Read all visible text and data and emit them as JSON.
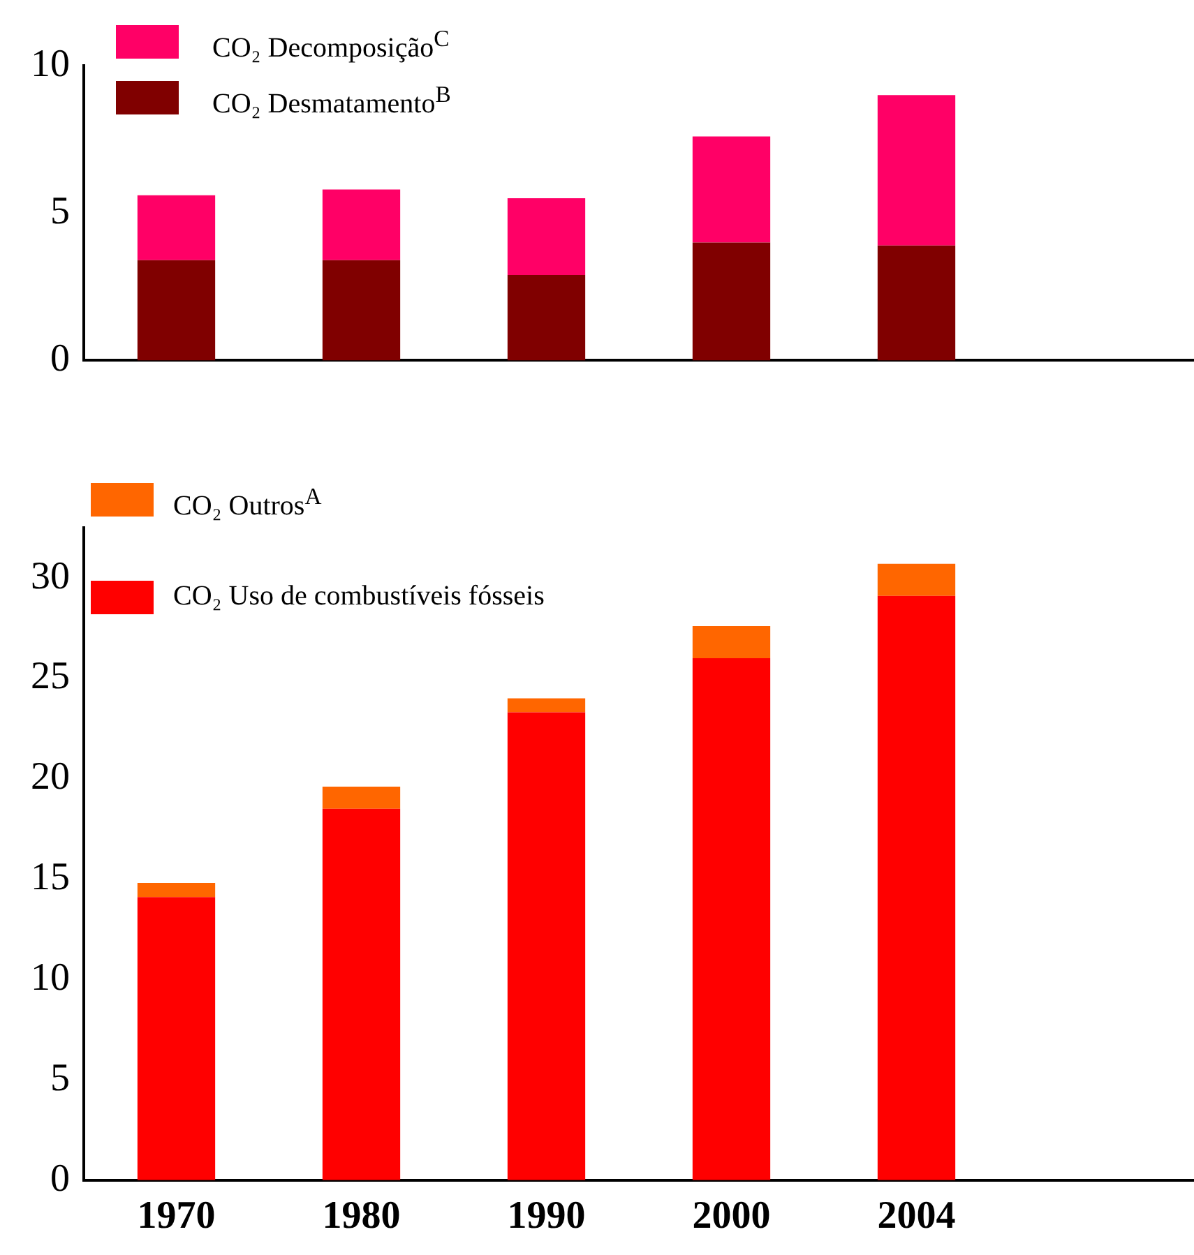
{
  "chart_data": [
    {
      "type": "bar",
      "stacked": true,
      "categories": [
        "1970",
        "1980",
        "1990",
        "2000",
        "2004",
        null
      ],
      "tick_labels": "y",
      "ylim": [
        0,
        10
      ],
      "yticks": [
        0,
        5,
        10
      ],
      "grid": false,
      "legend": "top left",
      "series": [
        {
          "name": "CO₂ Desmatamento$^{B}$",
          "color": "#800000",
          "values": [
            3.4,
            3.4,
            2.9,
            4.0,
            3.9,
            null
          ]
        },
        {
          "name": "CO₂ Decomposição$^{C}$",
          "color": "#ff0066",
          "values": [
            2.2,
            2.4,
            2.6,
            3.6,
            5.1,
            null
          ]
        }
      ]
    },
    {
      "type": "bar",
      "stacked": true,
      "categories": [
        "1970",
        "1980",
        "1990",
        "2000",
        "2004",
        null
      ],
      "ylim": [
        0,
        32.5
      ],
      "yticks": [
        0,
        5,
        10,
        15,
        20,
        25,
        30
      ],
      "grid": false,
      "legend": "top left",
      "series": [
        {
          "name": "CO₂ Uso de combustíveis fósseis",
          "color": "#ff0000",
          "values": [
            14.1,
            18.5,
            23.3,
            26.0,
            29.1,
            null
          ]
        },
        {
          "name": "CO₂ Outros$^{A}$",
          "color": "#ff6600",
          "values": [
            0.7,
            1.1,
            0.7,
            1.6,
            1.6,
            null
          ]
        }
      ]
    }
  ]
}
